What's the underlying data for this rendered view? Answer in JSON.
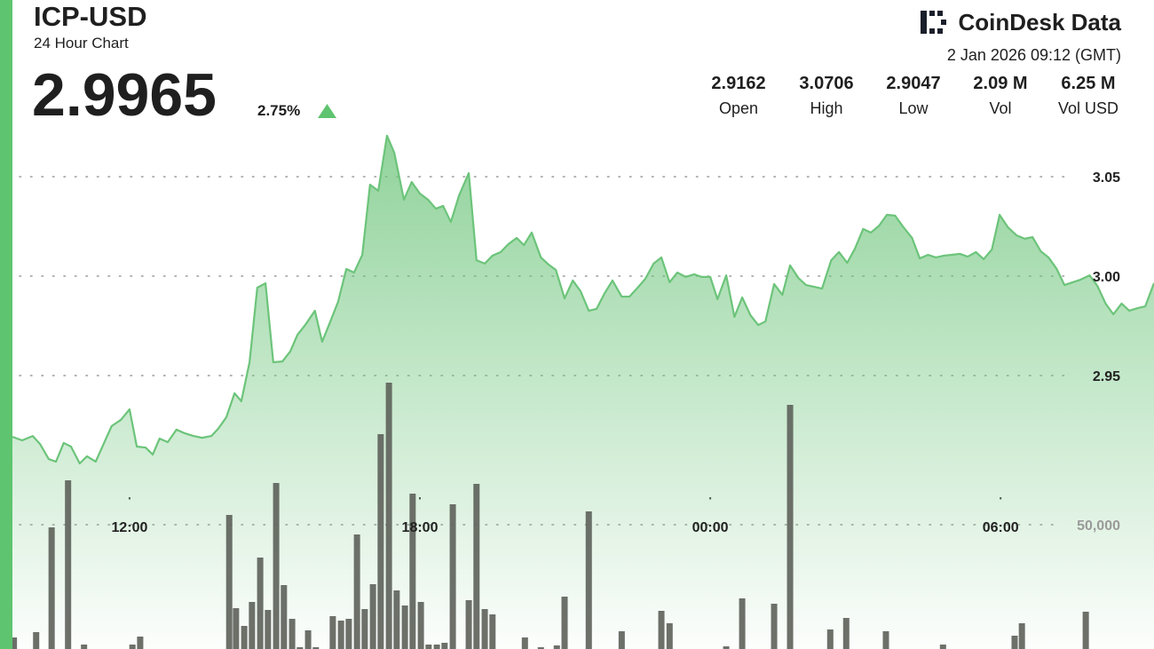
{
  "header": {
    "symbol": "ICP-USD",
    "subtitle": "24 Hour Chart",
    "price": "2.9965",
    "change": "2.75%",
    "brand": "CoinDesk Data",
    "timestamp": "2 Jan 2026 09:12 (GMT)",
    "stats": [
      {
        "value": "2.9162",
        "label": "Open"
      },
      {
        "value": "3.0706",
        "label": "High"
      },
      {
        "value": "2.9047",
        "label": "Low"
      },
      {
        "value": "2.09 M",
        "label": "Vol"
      },
      {
        "value": "6.25 M",
        "label": "Vol USD"
      }
    ]
  },
  "chart_data": {
    "type": "area",
    "xlim": [
      9.58,
      33.17
    ],
    "xticks": [
      {
        "value": 12,
        "label": "12:00"
      },
      {
        "value": 18,
        "label": "18:00"
      },
      {
        "value": 24,
        "label": "00:00"
      },
      {
        "value": 30,
        "label": "06:00"
      }
    ],
    "ylim": [
      2.8125,
      3.075
    ],
    "yticks": [
      2.95,
      {
        "value": 3.0,
        "label": "3.00"
      },
      3.05
    ],
    "y2lim": [
      0,
      210000
    ],
    "y2ticks": [
      {
        "value": 50000,
        "label": "50,000"
      }
    ],
    "grid": true,
    "series": [
      {
        "type": "area",
        "color": "#6cc47a",
        "x": [
          9.58,
          9.78,
          10.0,
          10.15,
          10.33,
          10.48,
          10.64,
          10.79,
          10.97,
          11.12,
          11.3,
          11.49,
          11.63,
          11.82,
          12.0,
          12.15,
          12.33,
          12.48,
          12.62,
          12.79,
          12.97,
          13.14,
          13.32,
          13.5,
          13.69,
          13.83,
          14.0,
          14.17,
          14.31,
          14.48,
          14.64,
          14.81,
          14.97,
          15.16,
          15.32,
          15.47,
          15.63,
          15.83,
          15.98,
          16.15,
          16.31,
          16.48,
          16.64,
          16.81,
          16.97,
          17.14,
          17.32,
          17.47,
          17.67,
          17.83,
          18.0,
          18.17,
          18.33,
          18.48,
          18.64,
          18.81,
          19.01,
          19.17,
          19.34,
          19.5,
          19.67,
          19.83,
          20.0,
          20.15,
          20.31,
          20.5,
          20.66,
          20.81,
          20.99,
          21.16,
          21.32,
          21.49,
          21.65,
          21.82,
          21.98,
          22.17,
          22.33,
          22.5,
          22.66,
          22.83,
          22.99,
          23.16,
          23.32,
          23.49,
          23.67,
          23.82,
          24.0,
          24.15,
          24.33,
          24.5,
          24.66,
          24.83,
          24.99,
          25.14,
          25.32,
          25.49,
          25.65,
          25.82,
          25.98,
          26.15,
          26.31,
          26.5,
          26.66,
          26.83,
          26.99,
          27.16,
          27.32,
          27.49,
          27.65,
          27.82,
          27.98,
          28.17,
          28.33,
          28.5,
          28.66,
          28.83,
          28.99,
          29.16,
          29.32,
          29.49,
          29.65,
          29.82,
          29.98,
          30.15,
          30.33,
          30.5,
          30.66,
          30.83,
          30.99,
          31.16,
          31.32,
          31.49,
          31.65,
          31.84,
          32.0,
          32.17,
          32.33,
          32.5,
          32.66,
          32.83,
          32.99,
          33.17
        ],
        "values": [
          2.9192,
          2.9174,
          2.9196,
          2.9156,
          2.908,
          2.9067,
          2.9161,
          2.9143,
          2.9058,
          2.9094,
          2.9067,
          2.917,
          2.9246,
          2.9277,
          2.933,
          2.9143,
          2.9138,
          2.9103,
          2.9183,
          2.9165,
          2.9228,
          2.921,
          2.9196,
          2.9187,
          2.9196,
          2.9232,
          2.929,
          2.9411,
          2.9371,
          2.9567,
          2.9942,
          2.9964,
          2.9567,
          2.9571,
          2.9621,
          2.9705,
          2.9754,
          2.9826,
          2.967,
          2.9772,
          2.9871,
          3.0036,
          3.0018,
          3.0107,
          3.046,
          3.0429,
          3.0706,
          3.0621,
          3.0384,
          3.0473,
          3.0415,
          3.0384,
          3.0339,
          3.0353,
          3.0272,
          3.0406,
          3.0518,
          3.008,
          3.0063,
          3.0103,
          3.0121,
          3.0161,
          3.0192,
          3.0156,
          3.0219,
          3.0094,
          3.0058,
          3.0031,
          2.9888,
          2.9978,
          2.9924,
          2.9826,
          2.9835,
          2.9915,
          2.9978,
          2.9897,
          2.9897,
          2.9942,
          2.9987,
          3.0063,
          3.0094,
          2.9969,
          3.0018,
          2.9996,
          3.0009,
          2.9996,
          2.9996,
          2.9884,
          3.0004,
          2.9795,
          2.9893,
          2.9804,
          2.9754,
          2.9772,
          2.996,
          2.9906,
          3.0054,
          2.9991,
          2.9955,
          2.9946,
          2.9937,
          3.008,
          3.0121,
          3.0067,
          3.0138,
          3.0237,
          3.0219,
          3.0254,
          3.0308,
          3.0304,
          3.025,
          3.0192,
          3.0089,
          3.0107,
          3.0094,
          3.0103,
          3.0107,
          3.0112,
          3.0098,
          3.0121,
          3.0085,
          3.0134,
          3.0308,
          3.0246,
          3.0205,
          3.0188,
          3.0196,
          3.0125,
          3.0094,
          3.0036,
          2.9955,
          2.9969,
          2.9982,
          3.0004,
          2.9951,
          2.9862,
          2.9808,
          2.9862,
          2.9826,
          2.9839,
          2.9848,
          2.9965
        ]
      },
      {
        "type": "bar",
        "axis": "y2",
        "color": "#5f645c",
        "x": [
          9.61,
          10.07,
          10.39,
          10.73,
          11.06,
          12.06,
          12.22,
          14.06,
          14.2,
          14.37,
          14.53,
          14.7,
          14.86,
          15.03,
          15.19,
          15.36,
          15.52,
          15.69,
          15.85,
          16.2,
          16.37,
          16.53,
          16.7,
          16.86,
          17.03,
          17.19,
          17.36,
          17.52,
          17.69,
          17.85,
          18.02,
          18.18,
          18.35,
          18.51,
          18.68,
          19.01,
          19.17,
          19.34,
          19.5,
          20.17,
          20.5,
          20.83,
          20.99,
          21.49,
          22.17,
          22.99,
          23.16,
          24.33,
          24.66,
          25.32,
          25.65,
          26.48,
          26.81,
          27.63,
          28.81,
          30.29,
          30.44,
          31.76
        ],
        "values": [
          4643,
          6786,
          48929,
          67857,
          1786,
          1786,
          5000,
          53929,
          16429,
          9286,
          18929,
          36786,
          15714,
          66786,
          25714,
          12143,
          714,
          7500,
          714,
          13214,
          11429,
          12143,
          46071,
          16071,
          26071,
          86429,
          107143,
          23571,
          17500,
          62500,
          18929,
          1786,
          1786,
          2500,
          58214,
          19643,
          66429,
          16071,
          13929,
          4643,
          714,
          1429,
          21071,
          55357,
          7143,
          15357,
          10357,
          1071,
          20357,
          18214,
          98214,
          7857,
          12500,
          7143,
          1786,
          5357,
          10357,
          15000
        ]
      }
    ]
  }
}
